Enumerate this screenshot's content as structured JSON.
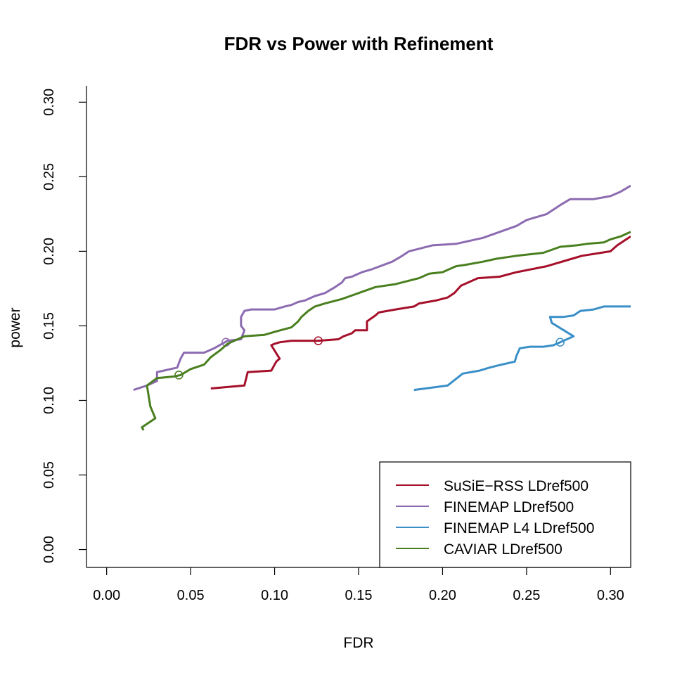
{
  "chart_data": {
    "type": "line",
    "title": "FDR vs Power with Refinement",
    "xlabel": "FDR",
    "ylabel": "power",
    "xlim": [
      -0.012,
      0.312
    ],
    "ylim": [
      -0.012,
      0.311
    ],
    "xticks": [
      0.0,
      0.05,
      0.1,
      0.15,
      0.2,
      0.25,
      0.3
    ],
    "xtick_labels": [
      "0.00",
      "0.05",
      "0.10",
      "0.15",
      "0.20",
      "0.25",
      "0.30"
    ],
    "yticks": [
      0.0,
      0.05,
      0.1,
      0.15,
      0.2,
      0.25,
      0.3
    ],
    "ytick_labels": [
      "0.00",
      "0.05",
      "0.10",
      "0.15",
      "0.20",
      "0.25",
      "0.30"
    ],
    "legend_position": "bottom-right",
    "series": [
      {
        "name": "SuSiE−RSS LDref500",
        "color": "#a50f2a",
        "x": [
          0.062,
          0.082,
          0.084,
          0.098,
          0.099,
          0.101,
          0.103,
          0.098,
          0.1,
          0.103,
          0.11,
          0.113,
          0.118,
          0.126,
          0.138,
          0.141,
          0.146,
          0.148,
          0.149,
          0.155,
          0.155,
          0.16,
          0.162,
          0.172,
          0.183,
          0.186,
          0.196,
          0.203,
          0.207,
          0.211,
          0.221,
          0.234,
          0.244,
          0.262,
          0.277,
          0.283,
          0.3,
          0.304,
          0.312
        ],
        "y": [
          0.108,
          0.11,
          0.119,
          0.12,
          0.122,
          0.126,
          0.128,
          0.137,
          0.138,
          0.139,
          0.14,
          0.14,
          0.14,
          0.14,
          0.141,
          0.143,
          0.145,
          0.147,
          0.147,
          0.147,
          0.153,
          0.157,
          0.159,
          0.161,
          0.163,
          0.165,
          0.167,
          0.169,
          0.172,
          0.177,
          0.182,
          0.183,
          0.186,
          0.19,
          0.195,
          0.197,
          0.2,
          0.204,
          0.21
        ],
        "marker": {
          "x": 0.126,
          "y": 0.14
        }
      },
      {
        "name": "FINEMAP LDref500",
        "color": "#8c6bb1",
        "x": [
          0.016,
          0.024,
          0.03,
          0.03,
          0.034,
          0.038,
          0.042,
          0.044,
          0.046,
          0.048,
          0.058,
          0.064,
          0.072,
          0.08,
          0.082,
          0.08,
          0.08,
          0.082,
          0.086,
          0.1,
          0.106,
          0.11,
          0.114,
          0.118,
          0.124,
          0.13,
          0.136,
          0.14,
          0.142,
          0.146,
          0.152,
          0.158,
          0.17,
          0.176,
          0.18,
          0.194,
          0.208,
          0.224,
          0.234,
          0.244,
          0.25,
          0.262,
          0.27,
          0.276,
          0.29,
          0.3,
          0.306,
          0.312
        ],
        "y": [
          0.107,
          0.11,
          0.113,
          0.119,
          0.12,
          0.121,
          0.122,
          0.128,
          0.132,
          0.132,
          0.132,
          0.135,
          0.14,
          0.141,
          0.147,
          0.15,
          0.156,
          0.16,
          0.161,
          0.161,
          0.163,
          0.164,
          0.166,
          0.167,
          0.17,
          0.172,
          0.176,
          0.179,
          0.182,
          0.183,
          0.186,
          0.188,
          0.193,
          0.197,
          0.2,
          0.204,
          0.205,
          0.209,
          0.213,
          0.217,
          0.221,
          0.225,
          0.231,
          0.235,
          0.235,
          0.237,
          0.24,
          0.244
        ],
        "marker": {
          "x": 0.071,
          "y": 0.139
        }
      },
      {
        "name": "FINEMAP L4 LDref500",
        "color": "#3a8fc8",
        "x": [
          0.183,
          0.203,
          0.212,
          0.222,
          0.228,
          0.235,
          0.243,
          0.244,
          0.246,
          0.252,
          0.26,
          0.266,
          0.268,
          0.27,
          0.278,
          0.265,
          0.264,
          0.272,
          0.278,
          0.282,
          0.29,
          0.296,
          0.312
        ],
        "y": [
          0.107,
          0.11,
          0.118,
          0.12,
          0.122,
          0.124,
          0.126,
          0.13,
          0.135,
          0.136,
          0.136,
          0.137,
          0.138,
          0.139,
          0.143,
          0.152,
          0.156,
          0.156,
          0.157,
          0.16,
          0.161,
          0.163,
          0.163
        ],
        "marker": {
          "x": 0.27,
          "y": 0.139
        }
      },
      {
        "name": "CAVIAR LDref500",
        "color": "#4a7f1f",
        "x": [
          0.022,
          0.021,
          0.029,
          0.026,
          0.024,
          0.03,
          0.04,
          0.044,
          0.05,
          0.058,
          0.062,
          0.068,
          0.072,
          0.082,
          0.094,
          0.1,
          0.11,
          0.114,
          0.116,
          0.12,
          0.124,
          0.13,
          0.14,
          0.15,
          0.16,
          0.172,
          0.186,
          0.192,
          0.2,
          0.208,
          0.214,
          0.224,
          0.232,
          0.244,
          0.26,
          0.27,
          0.28,
          0.286,
          0.296,
          0.3,
          0.306,
          0.312
        ],
        "y": [
          0.08,
          0.082,
          0.088,
          0.096,
          0.11,
          0.115,
          0.116,
          0.117,
          0.121,
          0.124,
          0.129,
          0.134,
          0.138,
          0.143,
          0.144,
          0.146,
          0.149,
          0.153,
          0.156,
          0.16,
          0.163,
          0.165,
          0.168,
          0.172,
          0.176,
          0.178,
          0.182,
          0.185,
          0.186,
          0.19,
          0.191,
          0.193,
          0.195,
          0.197,
          0.199,
          0.203,
          0.204,
          0.205,
          0.206,
          0.208,
          0.21,
          0.213
        ],
        "marker": {
          "x": 0.043,
          "y": 0.117
        }
      }
    ]
  }
}
